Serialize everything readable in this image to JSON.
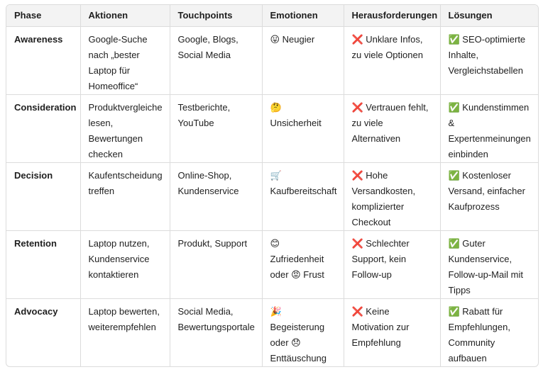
{
  "table": {
    "header": [
      "Phase",
      "Aktionen",
      "Touchpoints",
      "Emotionen",
      "Herausforderungen",
      "Lösungen"
    ],
    "rows": [
      [
        "Awareness",
        "Google-Suche nach „bester Laptop für Homeoffice“",
        "Google, Blogs, Social Media",
        "😛 Neugier",
        "❌ Unklare Infos, zu viele Optionen",
        "✅ SEO-optimierte Inhalte, Vergleichstabellen"
      ],
      [
        "Consideration",
        "Produktvergleiche lesen, Bewertungen checken",
        "Testberichte, YouTube",
        "🤔 Unsicherheit",
        "❌ Vertrauen fehlt, zu viele Alternativen",
        "✅ Kundenstimmen & Expertenmeinungen einbinden"
      ],
      [
        "Decision",
        "Kaufentscheidung treffen",
        "Online-Shop, Kundenservice",
        "🛒 Kaufbereitschaft",
        "❌ Hohe Versandkosten, komplizierter Checkout",
        "✅ Kostenloser Versand, einfacher Kaufprozess"
      ],
      [
        "Retention",
        "Laptop nutzen, Kundenservice kontaktieren",
        "Produkt, Support",
        "😊 Zufriedenheit oder 😡 Frust",
        "❌ Schlechter Support, kein Follow-up",
        "✅ Guter Kundenservice, Follow-up-Mail mit Tipps"
      ],
      [
        "Advocacy",
        "Laptop bewerten, weiterempfehlen",
        "Social Media, Bewertungsportale",
        "🎉 Begeisterung oder 😞 Enttäuschung",
        "❌ Keine Motivation zur Empfehlung",
        "✅ Rabatt für Empfehlungen, Community aufbauen"
      ]
    ]
  }
}
